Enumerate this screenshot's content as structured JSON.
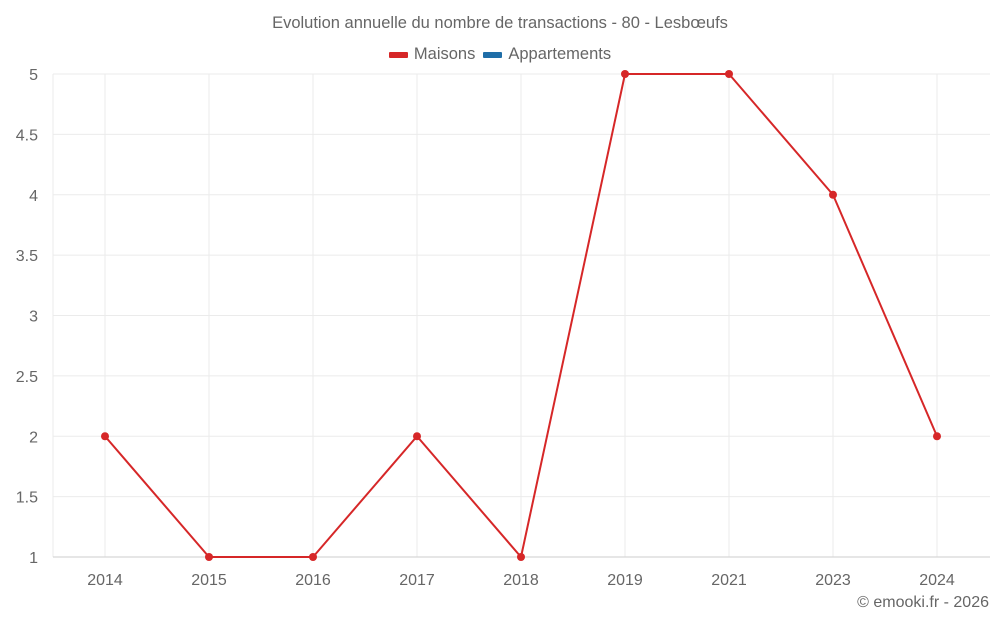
{
  "title": "Evolution annuelle du nombre de transactions - 80 - Lesbœufs",
  "legend": [
    {
      "label": "Maisons",
      "color": "#d62728"
    },
    {
      "label": "Appartements",
      "color": "#1f6ea8"
    }
  ],
  "watermark": "© emooki.fr - 2026",
  "colors": {
    "maisons": "#d62728",
    "appartements": "#1f6ea8",
    "grid": "#ebebeb",
    "axis": "#d6d6d6",
    "text": "#666666"
  },
  "chart_data": {
    "type": "line",
    "title": "Evolution annuelle du nombre de transactions - 80 - Lesbœufs",
    "xlabel": "",
    "ylabel": "",
    "categories": [
      "2014",
      "2015",
      "2016",
      "2017",
      "2018",
      "2019",
      "2021",
      "2023",
      "2024"
    ],
    "series": [
      {
        "name": "Maisons",
        "color": "#d62728",
        "values": [
          2,
          1,
          1,
          2,
          1,
          5,
          5,
          4,
          2
        ]
      },
      {
        "name": "Appartements",
        "color": "#1f6ea8",
        "values": []
      }
    ],
    "ylim": [
      1,
      5
    ],
    "yticks": [
      "1",
      "1.5",
      "2",
      "2.5",
      "3",
      "3.5",
      "4",
      "4.5",
      "5"
    ],
    "grid": true,
    "legend_position": "top"
  }
}
